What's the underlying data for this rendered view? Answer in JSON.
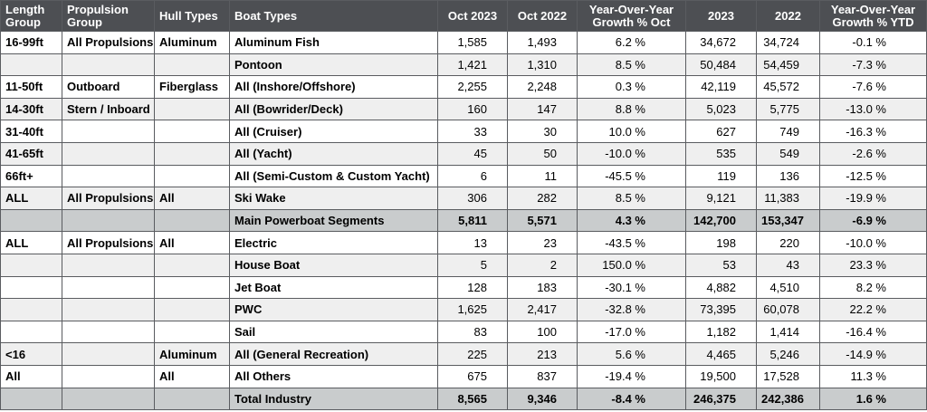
{
  "table": {
    "header": [
      "Length Group",
      "Propulsion Group",
      "Hull Types",
      "Boat Types",
      "Oct 2023",
      "Oct 2022",
      "Year-Over-Year Growth % Oct",
      "2023",
      "2022",
      "Year-Over-Year Growth % YTD"
    ],
    "rows": [
      [
        "16-99ft",
        "All Propulsions",
        "Aluminum",
        "Aluminum Fish",
        "1,585",
        "1,493",
        "6.2 %",
        "34,672",
        "34,724",
        "-0.1 %"
      ],
      [
        null,
        null,
        null,
        "Pontoon",
        "1,421",
        "1,310",
        "8.5 %",
        "50,484",
        "54,459",
        "-7.3 %"
      ],
      [
        "11-50ft",
        "Outboard",
        "Fiberglass",
        "All (Inshore/Offshore)",
        "2,255",
        "2,248",
        "0.3 %",
        "42,119",
        "45,572",
        "-7.6 %"
      ],
      [
        "14-30ft",
        "Stern / Inboard",
        null,
        "All (Bowrider/Deck)",
        "160",
        "147",
        "8.8 %",
        "5,023",
        "5,775",
        "-13.0 %"
      ],
      [
        "31-40ft",
        null,
        null,
        "All (Cruiser)",
        "33",
        "30",
        "10.0 %",
        "627",
        "749",
        "-16.3 %"
      ],
      [
        "41-65ft",
        null,
        null,
        "All (Yacht)",
        "45",
        "50",
        "-10.0 %",
        "535",
        "549",
        "-2.6 %"
      ],
      [
        "66ft+",
        null,
        null,
        "All (Semi-Custom & Custom Yacht)",
        "6",
        "11",
        "-45.5 %",
        "119",
        "136",
        "-12.5 %"
      ],
      [
        "ALL",
        "All Propulsions",
        "All",
        "Ski Wake",
        "306",
        "282",
        "8.5 %",
        "9,121",
        "11,383",
        "-19.9 %"
      ],
      [
        null,
        null,
        null,
        "Main Powerboat Segments",
        "5,811",
        "5,571",
        "4.3 %",
        "142,700",
        "153,347",
        "-6.9 %"
      ],
      [
        "ALL",
        "All Propulsions",
        "All",
        "Electric",
        "13",
        "23",
        "-43.5 %",
        "198",
        "220",
        "-10.0 %"
      ],
      [
        null,
        null,
        null,
        "House Boat",
        "5",
        "2",
        "150.0 %",
        "53",
        "43",
        "23.3 %"
      ],
      [
        null,
        null,
        null,
        "Jet Boat",
        "128",
        "183",
        "-30.1 %",
        "4,882",
        "4,510",
        "8.2 %"
      ],
      [
        null,
        null,
        null,
        "PWC",
        "1,625",
        "2,417",
        "-32.8 %",
        "73,395",
        "60,078",
        "22.2 %"
      ],
      [
        null,
        null,
        null,
        "Sail",
        "83",
        "100",
        "-17.0 %",
        "1,182",
        "1,414",
        "-16.4 %"
      ],
      [
        "<16",
        null,
        "Aluminum",
        "All (General Recreation)",
        "225",
        "213",
        "5.6 %",
        "4,465",
        "5,246",
        "-14.9 %"
      ],
      [
        "All",
        null,
        "All",
        "All Others",
        "675",
        "837",
        "-19.4 %",
        "19,500",
        "17,528",
        "11.3 %"
      ],
      [
        null,
        null,
        null,
        "Total Industry",
        "8,565",
        "9,346",
        "-8.4 %",
        "246,375",
        "242,386",
        "1.6 %"
      ]
    ]
  }
}
